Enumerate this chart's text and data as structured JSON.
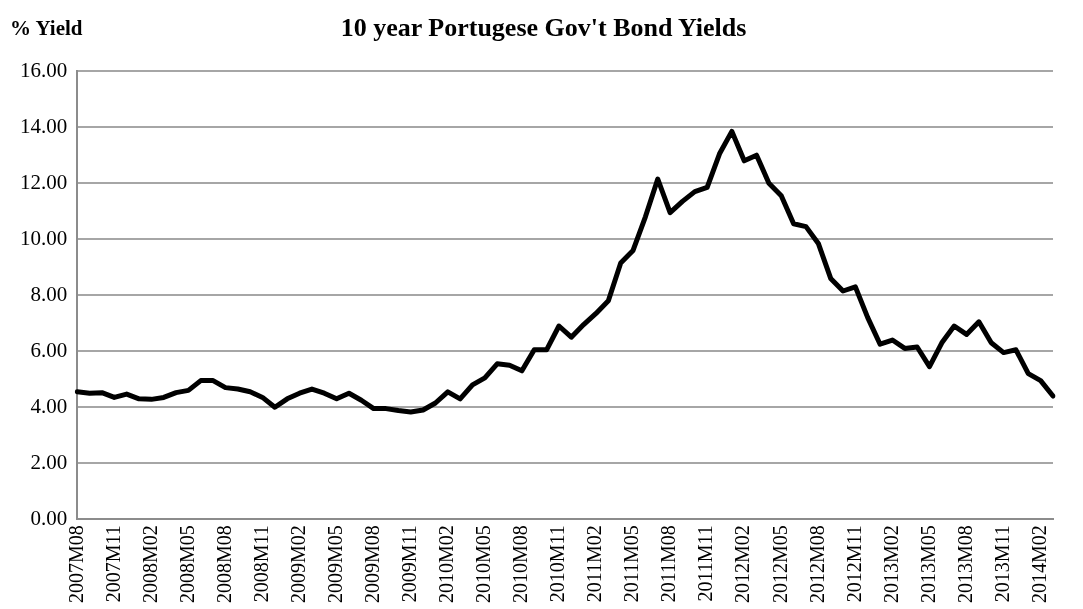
{
  "chart_data": {
    "type": "line",
    "title": "10 year Portugese Gov't Bond Yields",
    "ylabel": "% Yield",
    "categories": [
      "2007M08",
      null,
      null,
      "2007M11",
      null,
      null,
      "2008M02",
      null,
      null,
      "2008M05",
      null,
      null,
      "2008M08",
      null,
      null,
      "2008M11",
      null,
      null,
      "2009M02",
      null,
      null,
      "2009M05",
      null,
      null,
      "2009M08",
      null,
      null,
      "2009M11",
      null,
      null,
      "2010M02",
      null,
      null,
      "2010M05",
      null,
      null,
      "2010M08",
      null,
      null,
      "2010M11",
      null,
      null,
      "2011M02",
      null,
      null,
      "2011M05",
      null,
      null,
      "2011M08",
      null,
      null,
      "2011M11",
      null,
      null,
      "2012M02",
      null,
      null,
      "2012M05",
      null,
      null,
      "2012M08",
      null,
      null,
      "2012M11",
      null,
      null,
      "2013M02",
      null,
      null,
      "2013M05",
      null,
      null,
      "2013M08",
      null,
      null,
      "2013M11",
      null,
      null,
      "2014M02",
      null
    ],
    "series": [
      {
        "color": "#000000",
        "values": [
          4.55,
          4.5,
          4.52,
          4.35,
          4.47,
          4.3,
          4.28,
          4.35,
          4.52,
          4.6,
          4.95,
          4.95,
          4.7,
          4.65,
          4.55,
          4.35,
          4.0,
          4.3,
          4.5,
          4.65,
          4.5,
          4.3,
          4.5,
          4.25,
          3.95,
          3.95,
          3.88,
          3.83,
          3.9,
          4.15,
          4.55,
          4.3,
          4.8,
          5.05,
          5.55,
          5.5,
          5.3,
          6.05,
          6.05,
          6.9,
          6.5,
          6.95,
          7.35,
          7.8,
          9.15,
          9.6,
          10.8,
          12.15,
          10.95,
          11.35,
          11.7,
          11.85,
          13.05,
          13.85,
          12.8,
          13.0,
          12.0,
          11.55,
          10.55,
          10.45,
          9.85,
          8.6,
          8.15,
          8.3,
          7.2,
          6.25,
          6.4,
          6.1,
          6.15,
          5.45,
          6.3,
          6.9,
          6.6,
          7.05,
          6.3,
          5.95,
          6.05,
          5.2,
          4.95,
          4.4
        ]
      }
    ],
    "ylim": [
      0,
      16
    ],
    "yticks": [
      {
        "value": 0,
        "label": "0.00"
      },
      {
        "value": 2,
        "label": "2.00"
      },
      {
        "value": 4,
        "label": "4.00"
      },
      {
        "value": 6,
        "label": "6.00"
      },
      {
        "value": 8,
        "label": "8.00"
      },
      {
        "value": 10,
        "label": "10.00"
      },
      {
        "value": 12,
        "label": "12.00"
      },
      {
        "value": 14,
        "label": "14.00"
      },
      {
        "value": 16,
        "label": "16.00"
      }
    ],
    "grid": "y",
    "legend": false,
    "marker": "none",
    "line_style": "solid"
  }
}
